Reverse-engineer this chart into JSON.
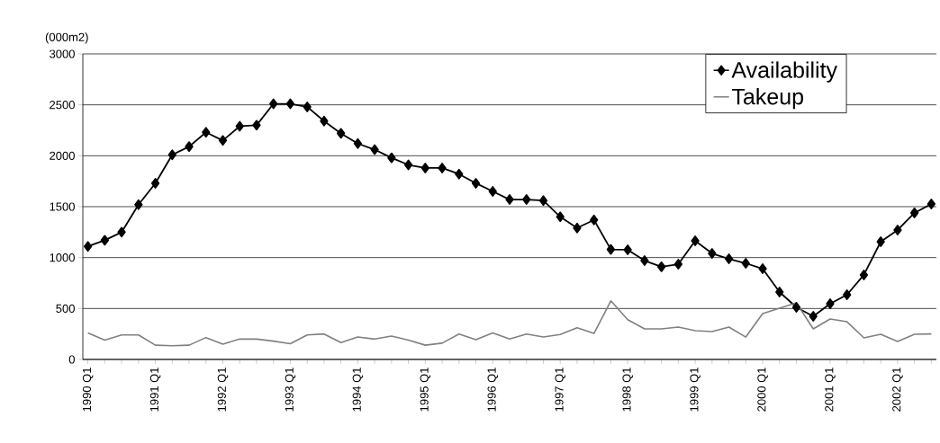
{
  "chart_data": {
    "type": "line",
    "ylabel": "(000m2)",
    "categories": [
      "1990 Q1",
      null,
      null,
      null,
      "1991 Q1",
      null,
      null,
      null,
      "1992 Q1",
      null,
      null,
      null,
      "1993 Q1",
      null,
      null,
      null,
      "1994 Q1",
      null,
      null,
      null,
      "1995 Q1",
      null,
      null,
      null,
      "1996 Q1",
      null,
      null,
      null,
      "1997 Q1",
      null,
      null,
      null,
      "1998 Q1",
      null,
      null,
      null,
      "1999 Q1",
      null,
      null,
      null,
      "2000 Q1",
      null,
      null,
      null,
      "2001 Q1",
      null,
      null,
      null,
      "2002 Q1",
      null,
      null
    ],
    "series": [
      {
        "name": "Availability",
        "color": "#000000",
        "marker": "diamond",
        "values": [
          1110,
          1170,
          1250,
          1520,
          1730,
          2010,
          2090,
          2230,
          2150,
          2290,
          2300,
          2510,
          2510,
          2480,
          2340,
          2220,
          2120,
          2060,
          1980,
          1910,
          1880,
          1880,
          1820,
          1730,
          1650,
          1570,
          1570,
          1560,
          1400,
          1290,
          1370,
          1080,
          1077,
          970,
          910,
          935,
          1165,
          1041,
          988,
          944,
          891,
          662,
          512,
          423,
          547,
          635,
          830,
          1156,
          1271,
          1439,
          1527
        ]
      },
      {
        "name": "Takeup",
        "color": "#808080",
        "marker": "none",
        "values": [
          260,
          190,
          240,
          240,
          140,
          135,
          140,
          215,
          150,
          200,
          200,
          180,
          155,
          240,
          250,
          165,
          220,
          200,
          230,
          190,
          140,
          160,
          250,
          195,
          260,
          200,
          250,
          220,
          245,
          310,
          255,
          575,
          390,
          300,
          300,
          318,
          283,
          273,
          318,
          220,
          450,
          503,
          556,
          300,
          397,
          370,
          212,
          247,
          176,
          247,
          250
        ]
      }
    ],
    "ylim": [
      0,
      3000
    ],
    "yticks": [
      0,
      500,
      1000,
      1500,
      2000,
      2500,
      3000
    ],
    "grid": "y",
    "legend": "top right",
    "line_style": "solid"
  }
}
